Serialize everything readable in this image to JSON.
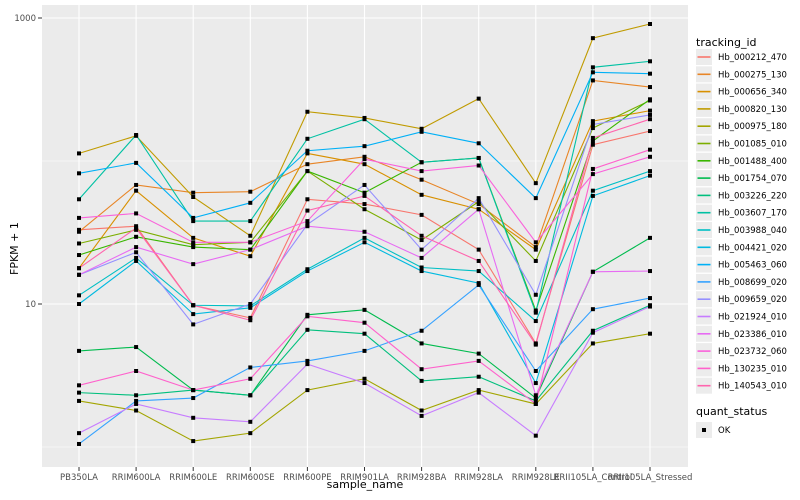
{
  "figure": {
    "background": "#FFFFFF",
    "panel_background": "#EBEBEB",
    "grid_color": "#FFFFFF",
    "tick_label_color": "#4D4D4D",
    "point_color": "#000000"
  },
  "axes": {
    "x": {
      "title": "sample_name",
      "categories": [
        "PB350LA",
        "RRIM600LA",
        "RRIM600LE",
        "RRIM600SE",
        "RRIM600PE",
        "RRIM901LA",
        "RRIM928BA",
        "RRIM928LA",
        "RRIM928LE",
        "RRII105LA_Control",
        "RRII105LA_Stressed"
      ]
    },
    "y": {
      "title": "FPKM + 1",
      "scale": "log10",
      "ticks": [
        {
          "label": "1000",
          "value": 1000
        },
        {
          "label": "10",
          "value": 10
        }
      ],
      "minor_gridlines": [
        100,
        1
      ]
    }
  },
  "legend": {
    "tracking_title": "tracking_id",
    "quant_title": "quant_status",
    "quant_items": [
      {
        "label": "OK",
        "shape": "black-square"
      }
    ]
  },
  "chart_data": {
    "type": "line",
    "title": "",
    "xlabel": "sample_name",
    "ylabel": "FPKM + 1",
    "yscale": "log10",
    "ylim": [
      1,
      1000
    ],
    "grid": true,
    "legend_position": "right",
    "point_marker": "black square (quant_status = OK)",
    "categories": [
      "PB350LA",
      "RRIM600LA",
      "RRIM600LE",
      "RRIM600SE",
      "RRIM600PE",
      "RRIM901LA",
      "RRIM928BA",
      "RRIM928LA",
      "RRIM928LE",
      "RRII105LA_Control",
      "RRII105LA_Stressed"
    ],
    "series": [
      {
        "name": "Hb_000212_470",
        "color": "#F8766D",
        "values": [
          33,
          35,
          9.8,
          8.0,
          54,
          50,
          42,
          24,
          5.3,
          130,
          162
        ]
      },
      {
        "name": "Hb_000275_130",
        "color": "#E88526",
        "values": [
          32,
          68,
          60,
          61,
          95,
          107,
          74,
          50,
          25,
          366,
          329
        ]
      },
      {
        "name": "Hb_000656_340",
        "color": "#D89000",
        "values": [
          17.8,
          62,
          29,
          21.6,
          113,
          95,
          58,
          46,
          24,
          190,
          225
        ]
      },
      {
        "name": "Hb_000820_130",
        "color": "#C09B00",
        "values": [
          113,
          150,
          56,
          30,
          221,
          200,
          168,
          273,
          70,
          723,
          908
        ]
      },
      {
        "name": "Hb_000975_180",
        "color": "#A3A500",
        "values": [
          2.1,
          1.8,
          1.1,
          1.25,
          2.5,
          3.0,
          1.8,
          2.5,
          2.0,
          5.3,
          6.2
        ]
      },
      {
        "name": "Hb_001085_010",
        "color": "#7CAE00",
        "values": [
          26.5,
          33,
          26,
          27,
          85,
          46,
          28,
          52,
          20,
          170,
          265
        ]
      },
      {
        "name": "Hb_001488_400",
        "color": "#39B600",
        "values": [
          22,
          29.5,
          25,
          24,
          85,
          60,
          98,
          105,
          9.0,
          138,
          270
        ]
      },
      {
        "name": "Hb_001754_070",
        "color": "#00BB4E",
        "values": [
          4.7,
          5.0,
          2.5,
          2.3,
          8.4,
          9.1,
          5.3,
          4.5,
          2.2,
          16.8,
          29
        ]
      },
      {
        "name": "Hb_003226_220",
        "color": "#00BF7D",
        "values": [
          2.4,
          2.3,
          2.5,
          2.3,
          6.6,
          6.2,
          2.9,
          3.1,
          2.1,
          6.5,
          9.8
        ]
      },
      {
        "name": "Hb_003607_170",
        "color": "#00C1A3",
        "values": [
          54,
          152,
          38,
          38,
          143,
          196,
          98,
          105,
          8.7,
          452,
          498
        ]
      },
      {
        "name": "Hb_003988_040",
        "color": "#00BFC4",
        "values": [
          11.5,
          21,
          9.8,
          9.7,
          17.5,
          29,
          18,
          17,
          7.6,
          62,
          85
        ]
      },
      {
        "name": "Hb_004421_020",
        "color": "#00BAE0",
        "values": [
          10,
          20,
          8.5,
          9.4,
          17,
          27,
          17,
          14,
          2.8,
          57,
          79
        ]
      },
      {
        "name": "Hb_005463_060",
        "color": "#00B0F6",
        "values": [
          82,
          97,
          40,
          51,
          118,
          127,
          160,
          133,
          55,
          417,
          408
        ]
      },
      {
        "name": "Hb_008699_020",
        "color": "#35A2FF",
        "values": [
          1.05,
          2.1,
          2.2,
          3.6,
          4.0,
          4.7,
          6.5,
          13.6,
          3.4,
          9.2,
          11
        ]
      },
      {
        "name": "Hb_009659_020",
        "color": "#9590FF",
        "values": [
          16,
          23,
          7.2,
          10,
          36,
          68,
          24,
          55,
          11.6,
          180,
          210
        ]
      },
      {
        "name": "Hb_021924_010",
        "color": "#C77CFF",
        "values": [
          1.25,
          2.0,
          1.6,
          1.5,
          3.8,
          2.8,
          1.65,
          2.4,
          1.2,
          6.3,
          9.6
        ]
      },
      {
        "name": "Hb_023386_010",
        "color": "#E76BF3",
        "values": [
          16,
          25,
          19,
          24,
          35,
          32,
          21,
          46,
          2.3,
          16.8,
          17
        ]
      },
      {
        "name": "Hb_023732_060",
        "color": "#FA62DB",
        "values": [
          40,
          43,
          27,
          27,
          38,
          103,
          85,
          93,
          27,
          81,
          107
        ]
      },
      {
        "name": "Hb_130235_010",
        "color": "#FF61CC",
        "values": [
          2.7,
          3.4,
          2.5,
          3.0,
          8.2,
          7.4,
          3.5,
          4.0,
          2.0,
          88,
          120
        ]
      },
      {
        "name": "Hb_140543_010",
        "color": "#FF65AE",
        "values": [
          17.8,
          34,
          9.8,
          7.7,
          45,
          57,
          30,
          20,
          5.2,
          145,
          196
        ]
      }
    ]
  }
}
